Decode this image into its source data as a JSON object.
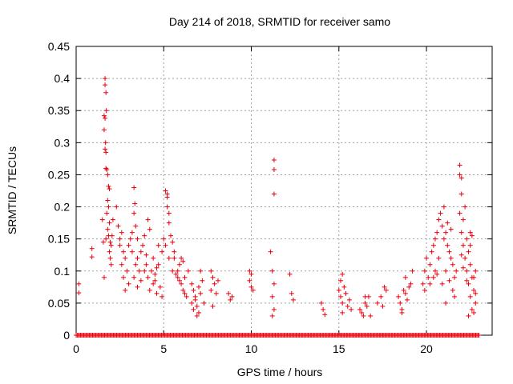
{
  "chart_data": {
    "type": "scatter",
    "title": "Day 214 of 2018, SRMTID for receiver samo",
    "xlabel": "GPS time / hours",
    "ylabel": "SRMTID / TECUs",
    "xlim": [
      0,
      23.75
    ],
    "ylim": [
      0,
      0.45
    ],
    "xticks": [
      0,
      5,
      10,
      15,
      20
    ],
    "xtick_labels": [
      "0",
      "5",
      "10",
      "15",
      "20"
    ],
    "yticks": [
      0,
      0.05,
      0.1,
      0.15,
      0.2,
      0.25,
      0.3,
      0.35,
      0.4,
      0.45
    ],
    "ytick_labels": [
      "0",
      "0.05",
      "0.1",
      "0.15",
      "0.2",
      "0.25",
      "0.3",
      "0.35",
      "0.4",
      "0.45"
    ],
    "grid": true,
    "marker": "plus",
    "color": "#e8000b",
    "series": [
      {
        "name": "SRMTID",
        "points": [
          [
            0.15,
            0.08
          ],
          [
            0.15,
            0.066
          ],
          [
            0.9,
            0.135
          ],
          [
            0.9,
            0.122
          ],
          [
            1.5,
            0.18
          ],
          [
            1.55,
            0.145
          ],
          [
            1.6,
            0.09
          ],
          [
            1.65,
            0.4
          ],
          [
            1.65,
            0.39
          ],
          [
            1.7,
            0.378
          ],
          [
            1.6,
            0.342
          ],
          [
            1.65,
            0.338
          ],
          [
            1.72,
            0.35
          ],
          [
            1.6,
            0.32
          ],
          [
            1.65,
            0.29
          ],
          [
            1.7,
            0.285
          ],
          [
            1.68,
            0.3
          ],
          [
            1.7,
            0.26
          ],
          [
            1.75,
            0.258
          ],
          [
            1.8,
            0.25
          ],
          [
            1.85,
            0.232
          ],
          [
            1.9,
            0.228
          ],
          [
            1.8,
            0.21
          ],
          [
            1.85,
            0.2
          ],
          [
            1.75,
            0.19
          ],
          [
            1.9,
            0.175
          ],
          [
            1.8,
            0.165
          ],
          [
            1.85,
            0.155
          ],
          [
            1.7,
            0.15
          ],
          [
            1.95,
            0.145
          ],
          [
            2.0,
            0.14
          ],
          [
            1.9,
            0.13
          ],
          [
            2.05,
            0.155
          ],
          [
            2.1,
            0.18
          ],
          [
            1.95,
            0.12
          ],
          [
            2.0,
            0.11
          ],
          [
            2.3,
            0.2
          ],
          [
            2.4,
            0.17
          ],
          [
            2.5,
            0.15
          ],
          [
            2.6,
            0.16
          ],
          [
            2.5,
            0.14
          ],
          [
            2.7,
            0.13
          ],
          [
            2.8,
            0.12
          ],
          [
            2.6,
            0.11
          ],
          [
            2.9,
            0.1
          ],
          [
            2.7,
            0.09
          ],
          [
            3.0,
            0.08
          ],
          [
            2.8,
            0.07
          ],
          [
            3.1,
            0.15
          ],
          [
            3.2,
            0.16
          ],
          [
            3.0,
            0.14
          ],
          [
            3.3,
            0.23
          ],
          [
            3.35,
            0.205
          ],
          [
            3.3,
            0.19
          ],
          [
            3.4,
            0.17
          ],
          [
            3.5,
            0.15
          ],
          [
            3.2,
            0.13
          ],
          [
            3.5,
            0.12
          ],
          [
            3.4,
            0.11
          ],
          [
            3.6,
            0.1
          ],
          [
            3.3,
            0.09
          ],
          [
            3.7,
            0.085
          ],
          [
            3.5,
            0.075
          ],
          [
            3.8,
            0.14
          ],
          [
            3.9,
            0.155
          ],
          [
            3.7,
            0.13
          ],
          [
            4.0,
            0.125
          ],
          [
            3.9,
            0.1
          ],
          [
            4.1,
            0.18
          ],
          [
            4.2,
            0.165
          ],
          [
            4.0,
            0.11
          ],
          [
            4.3,
            0.1
          ],
          [
            4.1,
            0.09
          ],
          [
            4.4,
            0.08
          ],
          [
            4.2,
            0.07
          ],
          [
            4.5,
            0.095
          ],
          [
            4.6,
            0.105
          ],
          [
            4.4,
            0.12
          ],
          [
            4.7,
            0.11
          ],
          [
            4.5,
            0.085
          ],
          [
            4.8,
            0.075
          ],
          [
            4.6,
            0.065
          ],
          [
            4.9,
            0.06
          ],
          [
            4.7,
            0.14
          ],
          [
            4.9,
            0.13
          ],
          [
            5.0,
            0.15
          ],
          [
            5.1,
            0.14
          ],
          [
            5.1,
            0.225
          ],
          [
            5.2,
            0.215
          ],
          [
            5.2,
            0.2
          ],
          [
            5.3,
            0.19
          ],
          [
            5.2,
            0.22
          ],
          [
            5.3,
            0.175
          ],
          [
            5.4,
            0.155
          ],
          [
            5.5,
            0.145
          ],
          [
            5.3,
            0.12
          ],
          [
            5.6,
            0.13
          ],
          [
            5.5,
            0.1
          ],
          [
            5.7,
            0.095
          ],
          [
            5.6,
            0.12
          ],
          [
            5.8,
            0.09
          ],
          [
            5.9,
            0.085
          ],
          [
            6.0,
            0.08
          ],
          [
            5.8,
            0.1
          ],
          [
            6.1,
            0.07
          ],
          [
            5.9,
            0.11
          ],
          [
            6.2,
            0.065
          ],
          [
            6.0,
            0.12
          ],
          [
            6.1,
            0.115
          ],
          [
            6.3,
            0.06
          ],
          [
            6.2,
            0.09
          ],
          [
            6.4,
            0.1
          ],
          [
            6.6,
            0.08
          ],
          [
            6.7,
            0.07
          ],
          [
            6.8,
            0.06
          ],
          [
            6.6,
            0.05
          ],
          [
            6.9,
            0.045
          ],
          [
            6.7,
            0.04
          ],
          [
            7.0,
            0.035
          ],
          [
            6.8,
            0.055
          ],
          [
            7.1,
            0.065
          ],
          [
            6.9,
            0.03
          ],
          [
            7.0,
            0.075
          ],
          [
            7.2,
            0.085
          ],
          [
            7.3,
            0.05
          ],
          [
            7.1,
            0.1
          ],
          [
            7.7,
            0.1
          ],
          [
            7.8,
            0.09
          ],
          [
            7.9,
            0.08
          ],
          [
            7.7,
            0.07
          ],
          [
            8.0,
            0.065
          ],
          [
            7.8,
            0.045
          ],
          [
            8.1,
            0.085
          ],
          [
            8.7,
            0.065
          ],
          [
            8.8,
            0.055
          ],
          [
            8.9,
            0.06
          ],
          [
            9.9,
            0.1
          ],
          [
            10.0,
            0.095
          ],
          [
            9.9,
            0.085
          ],
          [
            10.0,
            0.075
          ],
          [
            10.1,
            0.07
          ],
          [
            11.1,
            0.13
          ],
          [
            11.2,
            0.1
          ],
          [
            11.3,
            0.08
          ],
          [
            11.2,
            0.06
          ],
          [
            11.3,
            0.04
          ],
          [
            11.2,
            0.03
          ],
          [
            11.3,
            0.273
          ],
          [
            11.3,
            0.258
          ],
          [
            11.3,
            0.22
          ],
          [
            12.2,
            0.095
          ],
          [
            12.3,
            0.065
          ],
          [
            12.4,
            0.055
          ],
          [
            14.0,
            0.05
          ],
          [
            14.1,
            0.04
          ],
          [
            14.2,
            0.032
          ],
          [
            15.0,
            0.07
          ],
          [
            15.1,
            0.06
          ],
          [
            15.2,
            0.095
          ],
          [
            15.1,
            0.085
          ],
          [
            15.3,
            0.075
          ],
          [
            15.2,
            0.05
          ],
          [
            15.4,
            0.065
          ],
          [
            15.6,
            0.055
          ],
          [
            15.5,
            0.045
          ],
          [
            15.7,
            0.04
          ],
          [
            15.2,
            0.035
          ],
          [
            16.2,
            0.04
          ],
          [
            16.3,
            0.035
          ],
          [
            16.4,
            0.03
          ],
          [
            16.5,
            0.05
          ],
          [
            16.7,
            0.06
          ],
          [
            16.6,
            0.045
          ],
          [
            16.8,
            0.03
          ],
          [
            16.5,
            0.06
          ],
          [
            17.2,
            0.05
          ],
          [
            17.4,
            0.06
          ],
          [
            17.6,
            0.075
          ],
          [
            17.5,
            0.045
          ],
          [
            17.7,
            0.07
          ],
          [
            18.4,
            0.06
          ],
          [
            18.5,
            0.05
          ],
          [
            18.6,
            0.04
          ],
          [
            18.7,
            0.07
          ],
          [
            18.8,
            0.065
          ],
          [
            18.9,
            0.055
          ],
          [
            18.6,
            0.035
          ],
          [
            19.0,
            0.075
          ],
          [
            19.1,
            0.08
          ],
          [
            18.8,
            0.09
          ],
          [
            19.2,
            0.1
          ],
          [
            19.8,
            0.08
          ],
          [
            19.9,
            0.1
          ],
          [
            20.0,
            0.12
          ],
          [
            20.1,
            0.09
          ],
          [
            19.9,
            0.07
          ],
          [
            20.2,
            0.11
          ],
          [
            20.3,
            0.13
          ],
          [
            20.4,
            0.14
          ],
          [
            20.2,
            0.08
          ],
          [
            20.5,
            0.15
          ],
          [
            20.6,
            0.16
          ],
          [
            20.4,
            0.09
          ],
          [
            20.7,
            0.18
          ],
          [
            20.8,
            0.19
          ],
          [
            20.5,
            0.1
          ],
          [
            20.9,
            0.17
          ],
          [
            21.0,
            0.15
          ],
          [
            20.7,
            0.12
          ],
          [
            21.1,
            0.16
          ],
          [
            21.2,
            0.14
          ],
          [
            20.9,
            0.08
          ],
          [
            21.3,
            0.13
          ],
          [
            21.4,
            0.12
          ],
          [
            21.1,
            0.1
          ],
          [
            21.5,
            0.11
          ],
          [
            21.6,
            0.09
          ],
          [
            21.3,
            0.085
          ],
          [
            21.7,
            0.1
          ],
          [
            21.0,
            0.2
          ],
          [
            21.2,
            0.175
          ],
          [
            21.4,
            0.165
          ],
          [
            21.5,
            0.07
          ],
          [
            20.6,
            0.095
          ],
          [
            21.6,
            0.06
          ],
          [
            21.1,
            0.05
          ],
          [
            21.9,
            0.265
          ],
          [
            21.9,
            0.25
          ],
          [
            22.0,
            0.245
          ],
          [
            22.0,
            0.22
          ],
          [
            21.9,
            0.19
          ],
          [
            22.1,
            0.18
          ],
          [
            22.2,
            0.2
          ],
          [
            22.0,
            0.16
          ],
          [
            22.3,
            0.15
          ],
          [
            22.1,
            0.14
          ],
          [
            22.4,
            0.13
          ],
          [
            22.2,
            0.12
          ],
          [
            22.5,
            0.11
          ],
          [
            22.3,
            0.1
          ],
          [
            22.6,
            0.09
          ],
          [
            22.4,
            0.08
          ],
          [
            22.7,
            0.07
          ],
          [
            22.5,
            0.06
          ],
          [
            22.8,
            0.05
          ],
          [
            22.6,
            0.04
          ],
          [
            22.7,
            0.035
          ],
          [
            22.8,
            0.1
          ],
          [
            22.6,
            0.155
          ],
          [
            22.5,
            0.14
          ],
          [
            22.7,
            0.09
          ],
          [
            22.4,
            0.03
          ],
          [
            22.8,
            0.065
          ],
          [
            22.3,
            0.085
          ],
          [
            22.1,
            0.105
          ],
          [
            22.0,
            0.125
          ],
          [
            22.5,
            0.16
          ]
        ],
        "zero_baseline": {
          "x_start": 0,
          "x_end": 23.0,
          "y": 0
        }
      }
    ]
  }
}
